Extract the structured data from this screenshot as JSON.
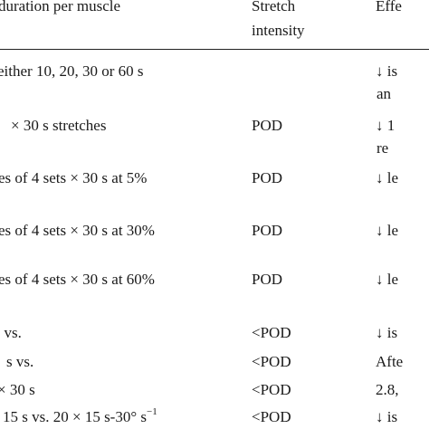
{
  "header": {
    "col_duration": "duration per muscle",
    "col_intensity_line1": "Stretch",
    "col_intensity_line2": "intensity",
    "col_effect": "Effe"
  },
  "rows": [
    {
      "duration": "either 10, 20, 30 or 60 s",
      "intensity": "",
      "effect_line1": "↓ is",
      "effect_line2": "an"
    },
    {
      "duration": "× 30 s stretches",
      "intensity": "POD",
      "effect_line1": "↓ 1",
      "effect_line2": "re"
    },
    {
      "duration": "es of 4 sets × 30 s at 5%",
      "intensity": "POD",
      "effect_line1": "↓ le",
      "effect_line2": ""
    },
    {
      "duration": "es of 4 sets × 30 s at 30%",
      "intensity": "POD",
      "effect_line1": "↓ le",
      "effect_line2": ""
    },
    {
      "duration": "es of 4 sets × 30 s at 60%",
      "intensity": "POD",
      "effect_line1": "↓ le",
      "effect_line2": ""
    },
    {
      "duration": ". vs.",
      "intensity": "<POD",
      "effect_line1": "↓ is",
      "effect_line2": ""
    },
    {
      "duration": "s vs.",
      "intensity": "<POD",
      "effect_line1": "Afte",
      "effect_line2": ""
    },
    {
      "duration": "× 30 s",
      "intensity": "<POD",
      "effect_line1": "2.8,",
      "effect_line2": ""
    },
    {
      "duration_main": "15 s vs. 20 × 15 s-30° s",
      "duration_sup": "−1",
      "intensity": "<POD",
      "effect_line1": "↓ is",
      "effect_line2": ""
    }
  ]
}
